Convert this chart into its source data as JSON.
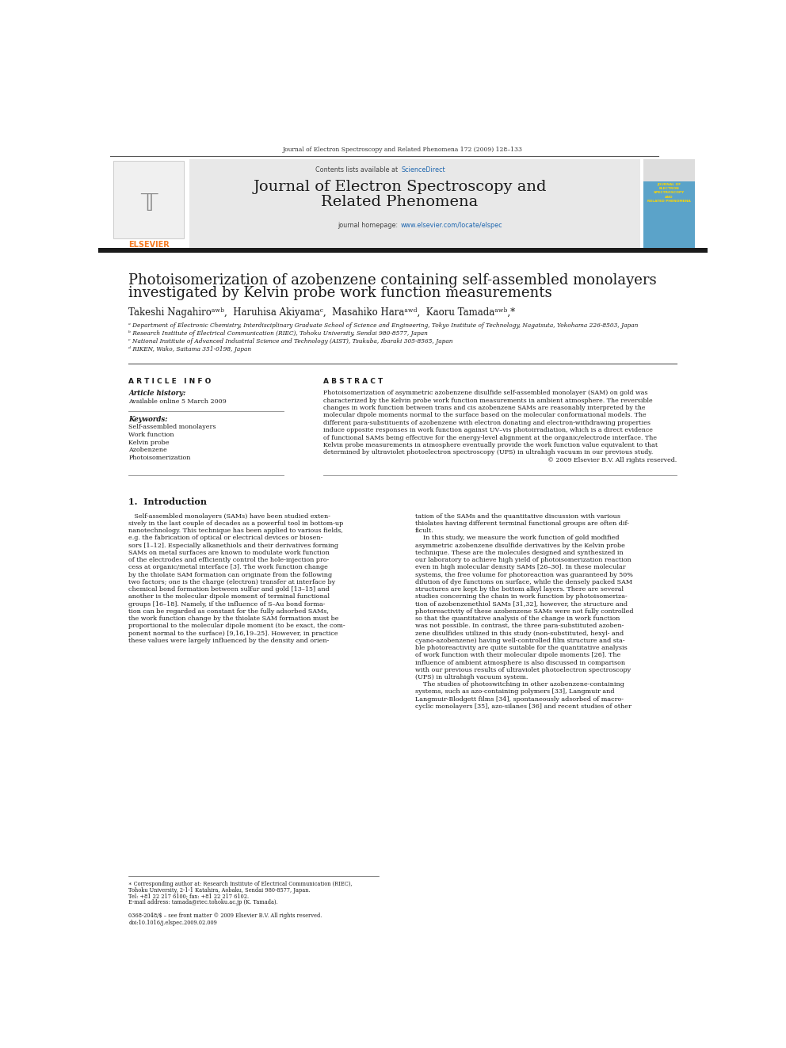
{
  "page_width": 9.92,
  "page_height": 13.23,
  "dpi": 100,
  "bg_color": "#ffffff",
  "journal_ref": "Journal of Electron Spectroscopy and Related Phenomena 172 (2009) 128–133",
  "journal_title_line1": "Journal of Electron Spectroscopy and",
  "journal_title_line2": "Related Phenomena",
  "contents_text": "Contents lists available at ",
  "science_direct": "ScienceDirect",
  "journal_homepage": "journal homepage: ",
  "homepage_url": "www.elsevier.com/locate/elspec",
  "paper_title_line1": "Photoisomerization of azobenzene containing self-assembled monolayers",
  "paper_title_line2": "investigated by Kelvin probe work function measurements",
  "authors": "Takeshi Nagahiroᵃʷᵇ,  Haruhisa Akiyamaᶜ,  Masahiko Haraᵃʷᵈ,  Kaoru Tamadaᵃʷᵇ,*",
  "affil_a": "ᵃ Department of Electronic Chemistry, Interdisciplinary Graduate School of Science and Engineering, Tokyo Institute of Technology, Nagatsuta, Yokohama 226-8503, Japan",
  "affil_b": "ᵇ Research Institute of Electrical Communication (RIEC), Tohoku University, Sendai 980-8577, Japan",
  "affil_c": "ᶜ National Institute of Advanced Industrial Science and Technology (AIST), Tsukuba, Ibaraki 305-8565, Japan",
  "affil_d": "ᵈ RIKEN, Wako, Saitama 351-0198, Japan",
  "article_info_title": "A R T I C L E   I N F O",
  "abstract_title": "A B S T R A C T",
  "article_history_title": "Article history:",
  "available_online": "Available online 5 March 2009",
  "keywords_title": "Keywords:",
  "keywords": [
    "Self-assembled monolayers",
    "Work function",
    "Kelvin probe",
    "Azobenzene",
    "Photoisomerization"
  ],
  "header_bg": "#e8e8e8",
  "black_bar_color": "#1a1a1a",
  "elsevier_orange": "#f47920",
  "link_color": "#2068b0",
  "journal_cover_bg": "#5ba3c9"
}
